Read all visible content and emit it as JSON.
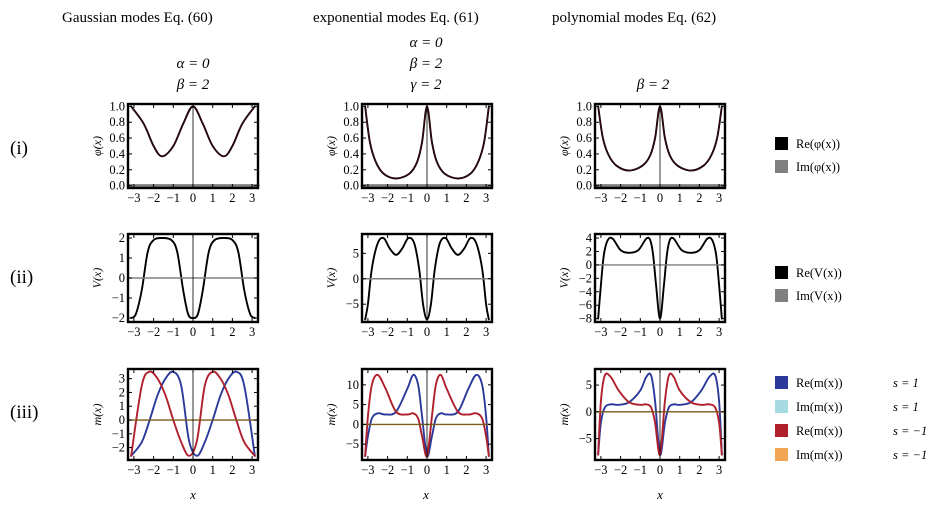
{
  "columns": [
    {
      "title": "Gaussian modes Eq. (60)",
      "params": [
        "α = 0",
        "β = 2"
      ]
    },
    {
      "title": "exponential modes Eq. (61)",
      "params": [
        "α = 0",
        "β = 2",
        "γ = 2"
      ]
    },
    {
      "title": "polynomial modes Eq. (62)",
      "params": [
        "β = 2"
      ]
    }
  ],
  "rows": [
    {
      "label": "(i)",
      "ylabel": "φ(x)"
    },
    {
      "label": "(ii)",
      "ylabel": "V(x)"
    },
    {
      "label": "(iii)",
      "ylabel": "m(x)"
    }
  ],
  "xlabel": "x",
  "xticks": [
    "−3",
    "−2",
    "−1",
    "0",
    "1",
    "2",
    "3"
  ],
  "legends": {
    "row1": [
      {
        "label": "Re(φ(x))",
        "color": "#000000"
      },
      {
        "label": "Im(φ(x))",
        "color": "#808080"
      }
    ],
    "row2": [
      {
        "label": "Re(V(x))",
        "color": "#000000"
      },
      {
        "label": "Im(V(x))",
        "color": "#808080"
      }
    ],
    "row3": [
      {
        "label": "Re(m(x))",
        "color": "#2b3a9a",
        "s": "s = 1"
      },
      {
        "label": "Im(m(x))",
        "color": "#a6dbe3",
        "s": "s = 1"
      },
      {
        "label": "Re(m(x))",
        "color": "#b0202c",
        "s": "s = −1"
      },
      {
        "label": "Im(m(x))",
        "color": "#f2a553",
        "s": "s = −1"
      }
    ]
  },
  "chart_data": [
    {
      "type": "line",
      "panel": "i-gaussian",
      "ylabel": "φ(x)",
      "xlim": [
        -3.3,
        3.3
      ],
      "ylim": [
        -0.03,
        1.03
      ],
      "yticks": [
        0.0,
        0.2,
        0.4,
        0.6,
        0.8,
        1.0
      ],
      "ytick_labels": [
        "0.0",
        "0.2",
        "0.4",
        "0.6",
        "0.8",
        "1.0"
      ],
      "series": [
        {
          "x": [
            -3.14,
            -2.5,
            -2.0,
            -1.57,
            -1.0,
            -0.5,
            0,
            0.5,
            1.0,
            1.57,
            2.0,
            2.5,
            3.14
          ],
          "y": [
            1.0,
            0.78,
            0.5,
            0.37,
            0.5,
            0.78,
            1.0,
            0.78,
            0.5,
            0.37,
            0.5,
            0.78,
            1.0
          ],
          "color": "#000000"
        },
        {
          "x": [
            -3.3,
            3.3
          ],
          "y": [
            0,
            0
          ],
          "color": "#808080"
        }
      ]
    },
    {
      "type": "line",
      "panel": "i-exponential",
      "ylabel": "φ(x)",
      "xlim": [
        -3.3,
        3.3
      ],
      "ylim": [
        -0.03,
        1.03
      ],
      "yticks": [
        0.0,
        0.2,
        0.4,
        0.6,
        0.8,
        1.0
      ],
      "ytick_labels": [
        "0.0",
        "0.2",
        "0.4",
        "0.6",
        "0.8",
        "1.0"
      ],
      "series": [
        {
          "x": [
            -3.14,
            -2.9,
            -2.6,
            -2.2,
            -1.57,
            -0.9,
            -0.5,
            -0.25,
            0,
            0.25,
            0.5,
            0.9,
            1.57,
            2.2,
            2.6,
            2.9,
            3.14
          ],
          "y": [
            1.0,
            0.55,
            0.3,
            0.15,
            0.09,
            0.15,
            0.3,
            0.55,
            1.0,
            0.55,
            0.3,
            0.15,
            0.09,
            0.15,
            0.3,
            0.55,
            1.0
          ],
          "color": "#000000"
        },
        {
          "x": [
            -3.3,
            3.3
          ],
          "y": [
            0,
            0
          ],
          "color": "#808080"
        }
      ]
    },
    {
      "type": "line",
      "panel": "i-polynomial",
      "ylabel": "φ(x)",
      "xlim": [
        -3.3,
        3.3
      ],
      "ylim": [
        -0.03,
        1.03
      ],
      "yticks": [
        0.0,
        0.2,
        0.4,
        0.6,
        0.8,
        1.0
      ],
      "ytick_labels": [
        "0.0",
        "0.2",
        "0.4",
        "0.6",
        "0.8",
        "1.0"
      ],
      "series": [
        {
          "x": [
            -3.14,
            -2.9,
            -2.6,
            -2.2,
            -1.57,
            -0.9,
            -0.5,
            -0.25,
            0,
            0.25,
            0.5,
            0.9,
            1.57,
            2.2,
            2.6,
            2.9,
            3.14
          ],
          "y": [
            1.0,
            0.6,
            0.38,
            0.25,
            0.19,
            0.25,
            0.38,
            0.6,
            1.0,
            0.6,
            0.38,
            0.25,
            0.19,
            0.25,
            0.38,
            0.6,
            1.0
          ],
          "color": "#000000"
        },
        {
          "x": [
            -3.3,
            3.3
          ],
          "y": [
            0,
            0
          ],
          "color": "#808080"
        }
      ]
    },
    {
      "type": "line",
      "panel": "ii-gaussian",
      "ylabel": "V(x)",
      "xlim": [
        -3.3,
        3.3
      ],
      "ylim": [
        -2.2,
        2.2
      ],
      "yticks": [
        -2,
        -1,
        0,
        1,
        2
      ],
      "ytick_labels": [
        "−2",
        "−1",
        "0",
        "1",
        "2"
      ],
      "series": [
        {
          "x": [
            -3.14,
            -2.9,
            -2.6,
            -2.3,
            -2.0,
            -1.57,
            -1.1,
            -0.8,
            -0.5,
            -0.25,
            0,
            0.25,
            0.5,
            0.8,
            1.1,
            1.57,
            2.0,
            2.3,
            2.6,
            2.9,
            3.14
          ],
          "y": [
            -2.0,
            -1.8,
            -0.6,
            1.3,
            1.9,
            2.0,
            1.9,
            1.3,
            -0.6,
            -1.8,
            -2.0,
            -1.8,
            -0.6,
            1.3,
            1.9,
            2.0,
            1.9,
            1.3,
            -0.6,
            -1.8,
            -2.0
          ],
          "color": "#000000"
        },
        {
          "x": [
            -3.3,
            3.3
          ],
          "y": [
            0,
            0
          ],
          "color": "#808080"
        }
      ]
    },
    {
      "type": "line",
      "panel": "ii-exponential",
      "ylabel": "V(x)",
      "xlim": [
        -3.3,
        3.3
      ],
      "ylim": [
        -8.5,
        8.8
      ],
      "yticks": [
        -5,
        0,
        5
      ],
      "ytick_labels": [
        "−5",
        "0",
        "5"
      ],
      "series": [
        {
          "x": [
            -3.14,
            -3.0,
            -2.8,
            -2.5,
            -2.2,
            -1.9,
            -1.57,
            -1.25,
            -0.95,
            -0.65,
            -0.4,
            -0.2,
            0,
            0.2,
            0.4,
            0.65,
            0.95,
            1.25,
            1.57,
            1.9,
            2.2,
            2.5,
            2.8,
            3.0,
            3.14
          ],
          "y": [
            -8.0,
            -5.0,
            2.0,
            7.0,
            8.0,
            6.0,
            4.7,
            6.0,
            8.0,
            7.0,
            2.0,
            -5.0,
            -8.0,
            -5.0,
            2.0,
            7.0,
            8.0,
            6.0,
            4.7,
            6.0,
            8.0,
            7.0,
            2.0,
            -5.0,
            -8.0
          ],
          "color": "#000000"
        },
        {
          "x": [
            -3.3,
            3.3
          ],
          "y": [
            0,
            0
          ],
          "color": "#808080"
        }
      ]
    },
    {
      "type": "line",
      "panel": "ii-polynomial",
      "ylabel": "V(x)",
      "xlim": [
        -3.3,
        3.3
      ],
      "ylim": [
        -8.5,
        4.6
      ],
      "yticks": [
        -8,
        -6,
        -4,
        -2,
        0,
        2,
        4
      ],
      "ytick_labels": [
        "−8",
        "−6",
        "−4",
        "−2",
        "0",
        "2",
        "4"
      ],
      "series": [
        {
          "x": [
            -3.14,
            -3.0,
            -2.85,
            -2.65,
            -2.4,
            -2.0,
            -1.57,
            -1.1,
            -0.7,
            -0.5,
            -0.35,
            -0.2,
            0,
            0.2,
            0.35,
            0.5,
            0.7,
            1.1,
            1.57,
            2.0,
            2.4,
            2.65,
            2.85,
            3.0,
            3.14
          ],
          "y": [
            -8.0,
            -3.0,
            1.5,
            3.7,
            3.9,
            2.2,
            1.8,
            2.2,
            3.9,
            3.7,
            1.5,
            -3.0,
            -8.0,
            -3.0,
            1.5,
            3.7,
            3.9,
            2.2,
            1.8,
            2.2,
            3.9,
            3.7,
            1.5,
            -3.0,
            -8.0
          ],
          "color": "#000000"
        },
        {
          "x": [
            -3.3,
            3.3
          ],
          "y": [
            0,
            0
          ],
          "color": "#808080"
        }
      ]
    },
    {
      "type": "line",
      "panel": "iii-gaussian",
      "ylabel": "m(x)",
      "xlim": [
        -3.3,
        3.3
      ],
      "ylim": [
        -2.9,
        3.7
      ],
      "yticks": [
        -2,
        -1,
        0,
        1,
        2,
        3
      ],
      "ytick_labels": [
        "−2",
        "−1",
        "0",
        "1",
        "2",
        "3"
      ],
      "series": [
        {
          "name": "Re(m(x)) s=1",
          "x": [
            -3.14,
            -2.6,
            -2.2,
            -1.8,
            -1.4,
            -1.0,
            -0.6,
            -0.2,
            0.2,
            0.6,
            1.0,
            1.4,
            1.8,
            2.2,
            2.6,
            3.14
          ],
          "y": [
            -2.6,
            -1.6,
            0.0,
            1.8,
            3.0,
            3.5,
            2.5,
            -1.5,
            -2.6,
            -1.6,
            0.0,
            1.8,
            3.0,
            3.5,
            2.5,
            -2.6
          ],
          "color": "#2b3a9a"
        },
        {
          "name": "Re(m(x)) s=-1",
          "x": [
            -3.14,
            -2.6,
            -2.2,
            -1.8,
            -1.4,
            -1.0,
            -0.6,
            -0.2,
            0.2,
            0.6,
            1.0,
            1.4,
            1.8,
            2.2,
            2.6,
            3.14
          ],
          "y": [
            -2.6,
            2.5,
            3.5,
            3.0,
            1.8,
            0.0,
            -1.6,
            -2.6,
            -1.5,
            2.5,
            3.5,
            3.0,
            1.8,
            0.0,
            -1.6,
            -2.6
          ],
          "color": "#b0202c"
        },
        {
          "name": "Im(m(x))",
          "x": [
            -3.3,
            3.3
          ],
          "y": [
            0,
            0
          ],
          "color": "#7a5a1a"
        }
      ]
    },
    {
      "type": "line",
      "panel": "iii-exponential",
      "ylabel": "m(x)",
      "xlim": [
        -3.3,
        3.3
      ],
      "ylim": [
        -9.0,
        14.0
      ],
      "yticks": [
        -5,
        0,
        5,
        10
      ],
      "ytick_labels": [
        "−5",
        "0",
        "5",
        "10"
      ],
      "series": [
        {
          "name": "Re(m(x)) s=1",
          "x": [
            -3.14,
            -3.0,
            -2.8,
            -2.5,
            -2.1,
            -1.57,
            -1.0,
            -0.7,
            -0.45,
            -0.25,
            0,
            0.25,
            0.45,
            0.7,
            1.0,
            1.57,
            2.1,
            2.5,
            2.8,
            3.0,
            3.14
          ],
          "y": [
            -8.0,
            -3.0,
            1.5,
            2.8,
            2.5,
            3.2,
            9.0,
            12.5,
            10.0,
            2.0,
            -8.0,
            -3.0,
            1.5,
            2.8,
            2.5,
            3.2,
            9.0,
            12.5,
            10.0,
            2.0,
            -8.0
          ],
          "color": "#2b3a9a"
        },
        {
          "name": "Re(m(x)) s=-1",
          "x": [
            -3.14,
            -3.0,
            -2.8,
            -2.5,
            -2.1,
            -1.57,
            -1.0,
            -0.7,
            -0.45,
            -0.25,
            0,
            0.25,
            0.45,
            0.7,
            1.0,
            1.57,
            2.1,
            2.5,
            2.8,
            3.0,
            3.14
          ],
          "y": [
            -8.0,
            2.0,
            10.0,
            12.5,
            9.0,
            3.2,
            2.5,
            2.8,
            1.5,
            -3.0,
            -8.0,
            2.0,
            10.0,
            12.5,
            9.0,
            3.2,
            2.5,
            2.8,
            1.5,
            -3.0,
            -8.0
          ],
          "color": "#b0202c"
        },
        {
          "name": "Im(m(x))",
          "x": [
            -3.3,
            3.3
          ],
          "y": [
            0,
            0
          ],
          "color": "#7a5a1a"
        }
      ]
    },
    {
      "type": "line",
      "panel": "iii-polynomial",
      "ylabel": "m(x)",
      "xlim": [
        -3.3,
        3.3
      ],
      "ylim": [
        -9.0,
        8.0
      ],
      "yticks": [
        -5,
        0,
        5
      ],
      "ytick_labels": [
        "−5",
        "0",
        "5"
      ],
      "series": [
        {
          "name": "Re(m(x)) s=1",
          "x": [
            -3.14,
            -3.0,
            -2.8,
            -2.5,
            -2.1,
            -1.57,
            -1.0,
            -0.7,
            -0.45,
            -0.25,
            0,
            0.25,
            0.45,
            0.7,
            1.0,
            1.57,
            2.1,
            2.5,
            2.8,
            3.0,
            3.14
          ],
          "y": [
            -8.0,
            -2.0,
            0.8,
            1.4,
            1.3,
            1.8,
            4.0,
            6.5,
            6.8,
            2.0,
            -8.0,
            -2.0,
            0.8,
            1.4,
            1.3,
            1.8,
            4.0,
            6.5,
            6.8,
            2.0,
            -8.0
          ],
          "color": "#2b3a9a"
        },
        {
          "name": "Re(m(x)) s=-1",
          "x": [
            -3.14,
            -3.0,
            -2.8,
            -2.5,
            -2.1,
            -1.57,
            -1.0,
            -0.7,
            -0.45,
            -0.25,
            0,
            0.25,
            0.45,
            0.7,
            1.0,
            1.57,
            2.1,
            2.5,
            2.8,
            3.0,
            3.14
          ],
          "y": [
            -8.0,
            2.0,
            6.8,
            6.5,
            4.0,
            1.8,
            1.3,
            1.4,
            0.8,
            -2.0,
            -8.0,
            2.0,
            6.8,
            6.5,
            4.0,
            1.8,
            1.3,
            1.4,
            0.8,
            -2.0,
            -8.0
          ],
          "color": "#b0202c"
        },
        {
          "name": "Im(m(x))",
          "x": [
            -3.3,
            3.3
          ],
          "y": [
            0,
            0
          ],
          "color": "#7a5a1a"
        }
      ]
    }
  ]
}
